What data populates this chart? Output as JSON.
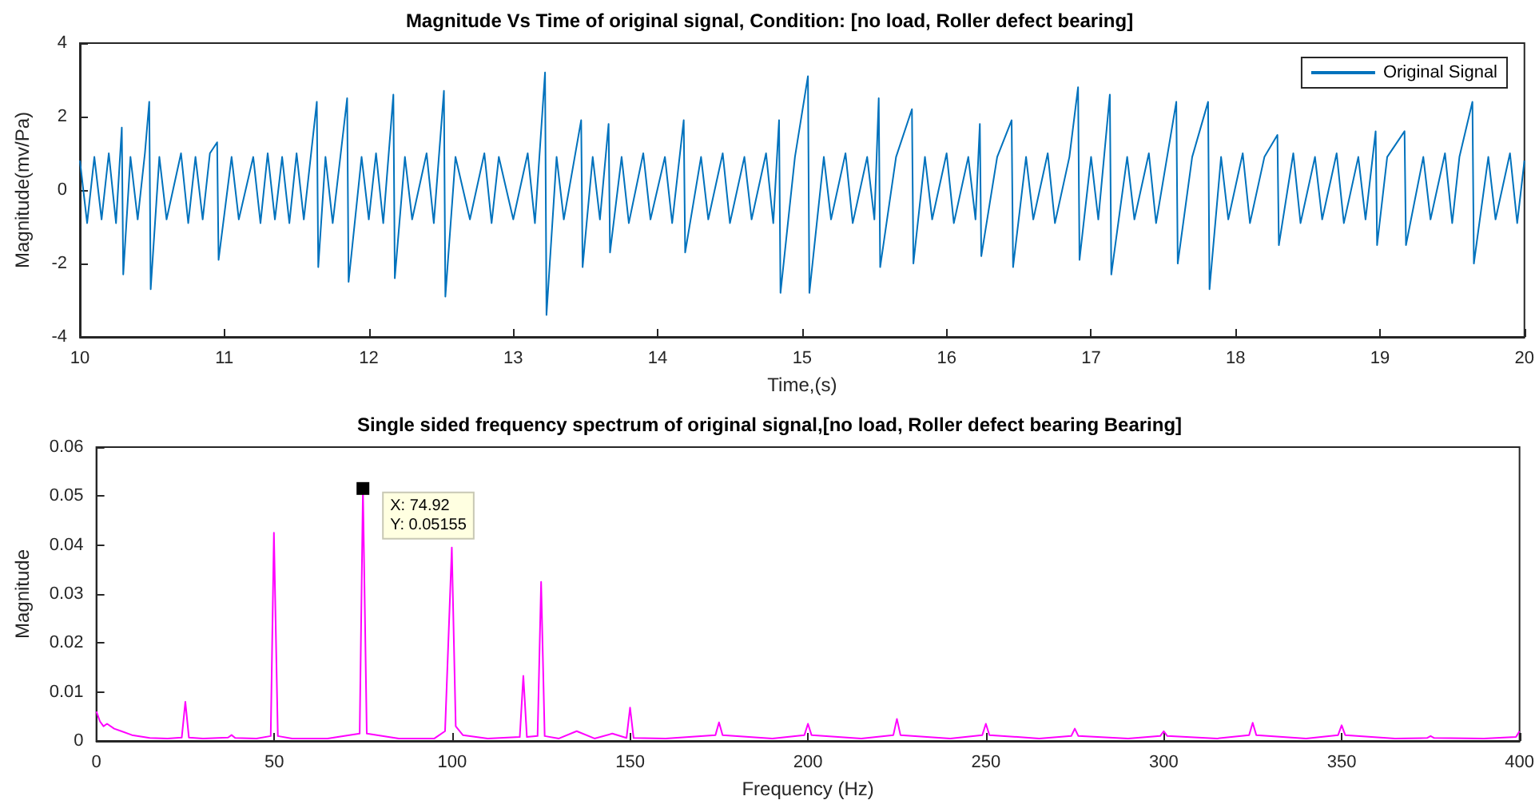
{
  "chart_data": [
    {
      "type": "line",
      "title": "Magnitude Vs Time of original signal, Condition: [no load, Roller defect bearing]",
      "xlabel": "Time,(s)",
      "ylabel": "Magnitude(mv/Pa)",
      "xlim": [
        10,
        20
      ],
      "xticks": [
        10,
        11,
        12,
        13,
        14,
        15,
        16,
        17,
        18,
        19,
        20
      ],
      "ylim": [
        -4,
        4
      ],
      "yticks": [
        -4,
        -2,
        0,
        2,
        4
      ],
      "legend": "top right",
      "x": [
        10.0,
        10.05,
        10.1,
        10.15,
        10.2,
        10.25,
        10.29,
        10.3,
        10.35,
        10.4,
        10.45,
        10.48,
        10.49,
        10.55,
        10.6,
        10.7,
        10.75,
        10.8,
        10.85,
        10.9,
        10.95,
        10.96,
        11.05,
        11.1,
        11.2,
        11.25,
        11.3,
        11.35,
        11.4,
        11.45,
        11.5,
        11.55,
        11.64,
        11.65,
        11.7,
        11.75,
        11.85,
        11.86,
        11.95,
        12.0,
        12.05,
        12.1,
        12.17,
        12.18,
        12.25,
        12.3,
        12.4,
        12.45,
        12.52,
        12.53,
        12.6,
        12.7,
        12.8,
        12.85,
        12.9,
        13.0,
        13.1,
        13.15,
        13.22,
        13.23,
        13.3,
        13.35,
        13.47,
        13.48,
        13.55,
        13.6,
        13.66,
        13.67,
        13.75,
        13.8,
        13.9,
        13.95,
        14.05,
        14.1,
        14.18,
        14.19,
        14.3,
        14.35,
        14.45,
        14.5,
        14.6,
        14.65,
        14.75,
        14.8,
        14.84,
        14.85,
        14.95,
        15.04,
        15.05,
        15.15,
        15.2,
        15.3,
        15.35,
        15.45,
        15.5,
        15.53,
        15.54,
        15.65,
        15.76,
        15.77,
        15.85,
        15.9,
        16.0,
        16.05,
        16.15,
        16.2,
        16.23,
        16.24,
        16.35,
        16.45,
        16.46,
        16.55,
        16.6,
        16.7,
        16.75,
        16.85,
        16.91,
        16.92,
        17.0,
        17.05,
        17.13,
        17.14,
        17.25,
        17.3,
        17.4,
        17.45,
        17.59,
        17.6,
        17.7,
        17.81,
        17.82,
        17.9,
        17.95,
        18.05,
        18.1,
        18.2,
        18.29,
        18.3,
        18.4,
        18.45,
        18.55,
        18.6,
        18.7,
        18.75,
        18.85,
        18.9,
        18.97,
        18.98,
        19.05,
        19.17,
        19.18,
        19.3,
        19.35,
        19.45,
        19.5,
        19.55,
        19.64,
        19.65,
        19.75,
        19.8,
        19.9,
        19.95,
        20.0
      ],
      "series": [
        {
          "name": "Original Signal",
          "color": "#0072bd",
          "values": [
            0.8,
            -0.9,
            0.9,
            -0.8,
            1.0,
            -0.9,
            1.7,
            -2.3,
            0.9,
            -0.8,
            1.0,
            2.4,
            -2.7,
            0.9,
            -0.8,
            1.0,
            -0.9,
            0.9,
            -0.8,
            1.0,
            1.3,
            -1.9,
            0.9,
            -0.8,
            0.9,
            -0.9,
            1.0,
            -0.8,
            0.9,
            -0.9,
            1.0,
            -0.8,
            2.4,
            -2.1,
            0.9,
            -0.9,
            2.5,
            -2.5,
            0.9,
            -0.8,
            1.0,
            -0.9,
            2.6,
            -2.4,
            0.9,
            -0.8,
            1.0,
            -0.9,
            2.7,
            -2.9,
            0.9,
            -0.8,
            1.0,
            -0.9,
            0.9,
            -0.8,
            1.0,
            -0.9,
            3.2,
            -3.4,
            0.9,
            -0.8,
            1.9,
            -2.1,
            0.9,
            -0.8,
            1.8,
            -1.7,
            0.9,
            -0.9,
            1.0,
            -0.8,
            0.9,
            -0.9,
            1.9,
            -1.7,
            0.9,
            -0.8,
            1.0,
            -0.9,
            0.9,
            -0.8,
            1.0,
            -0.9,
            1.9,
            -2.8,
            0.9,
            3.1,
            -2.8,
            0.9,
            -0.8,
            1.0,
            -0.9,
            0.9,
            -0.8,
            2.5,
            -2.1,
            0.9,
            2.2,
            -2.0,
            0.9,
            -0.8,
            1.0,
            -0.9,
            0.9,
            -0.8,
            1.8,
            -1.8,
            0.9,
            1.9,
            -2.1,
            0.9,
            -0.8,
            1.0,
            -0.9,
            0.9,
            2.8,
            -1.9,
            0.9,
            -0.8,
            2.6,
            -2.3,
            0.9,
            -0.8,
            1.0,
            -0.9,
            2.4,
            -2.0,
            0.9,
            2.4,
            -2.7,
            0.9,
            -0.8,
            1.0,
            -0.9,
            0.9,
            1.5,
            -1.5,
            1.0,
            -0.9,
            0.9,
            -0.8,
            1.0,
            -0.9,
            0.9,
            -0.8,
            1.6,
            -1.5,
            0.9,
            1.6,
            -1.5,
            0.9,
            -0.8,
            1.0,
            -0.9,
            0.9,
            2.4,
            -2.0,
            0.9,
            -0.8,
            1.0,
            -0.9,
            0.8
          ]
        }
      ]
    },
    {
      "type": "line",
      "title": "Single sided frequency spectrum of original signal,[no load, Roller defect bearing Bearing]",
      "xlabel": "Frequency (Hz)",
      "ylabel": "Magnitude",
      "xlim": [
        0,
        400
      ],
      "xticks": [
        0,
        50,
        100,
        150,
        200,
        250,
        300,
        350,
        400
      ],
      "ylim": [
        0,
        0.06
      ],
      "yticks": [
        0,
        0.01,
        0.02,
        0.03,
        0.04,
        0.05,
        0.06
      ],
      "annotations": [
        {
          "text": "X: 74.92\nY: 0.05155",
          "x": 74.92,
          "y": 0.05155
        }
      ],
      "x": [
        0,
        1,
        2,
        3,
        5,
        7,
        10,
        15,
        20,
        24,
        25,
        26,
        30,
        37,
        38,
        39,
        45,
        49,
        49.9,
        51,
        55,
        65,
        74,
        74.92,
        76,
        85,
        95,
        98,
        99.9,
        101,
        103,
        110,
        119,
        120,
        121,
        124,
        125,
        126,
        130,
        135,
        140,
        145,
        149,
        150,
        151,
        160,
        174,
        175,
        176,
        190,
        199,
        200,
        201,
        215,
        224,
        225,
        226,
        240,
        249,
        250,
        251,
        265,
        274,
        275,
        276,
        290,
        299,
        300,
        301,
        315,
        324,
        325,
        326,
        340,
        349,
        350,
        351,
        365,
        374,
        375,
        376,
        390,
        399,
        400
      ],
      "series": [
        {
          "color": "#ff00ff",
          "values": [
            0.006,
            0.004,
            0.003,
            0.0035,
            0.0025,
            0.002,
            0.0012,
            0.0006,
            0.0005,
            0.0007,
            0.008,
            0.0007,
            0.0005,
            0.0007,
            0.0012,
            0.0006,
            0.0005,
            0.001,
            0.0425,
            0.001,
            0.0005,
            0.0005,
            0.0015,
            0.05155,
            0.0015,
            0.0005,
            0.0005,
            0.002,
            0.0395,
            0.003,
            0.0012,
            0.0005,
            0.0008,
            0.0133,
            0.0008,
            0.001,
            0.0325,
            0.001,
            0.0005,
            0.002,
            0.0005,
            0.0015,
            0.0006,
            0.0068,
            0.0006,
            0.0005,
            0.0012,
            0.0038,
            0.0012,
            0.0005,
            0.0012,
            0.0035,
            0.0012,
            0.0005,
            0.0012,
            0.0045,
            0.0012,
            0.0005,
            0.0012,
            0.0035,
            0.0012,
            0.0005,
            0.001,
            0.0025,
            0.001,
            0.0005,
            0.001,
            0.002,
            0.001,
            0.0005,
            0.0012,
            0.0037,
            0.0012,
            0.0005,
            0.0012,
            0.0032,
            0.0012,
            0.0005,
            0.0006,
            0.001,
            0.0006,
            0.0005,
            0.0008,
            0.002
          ]
        }
      ]
    }
  ]
}
